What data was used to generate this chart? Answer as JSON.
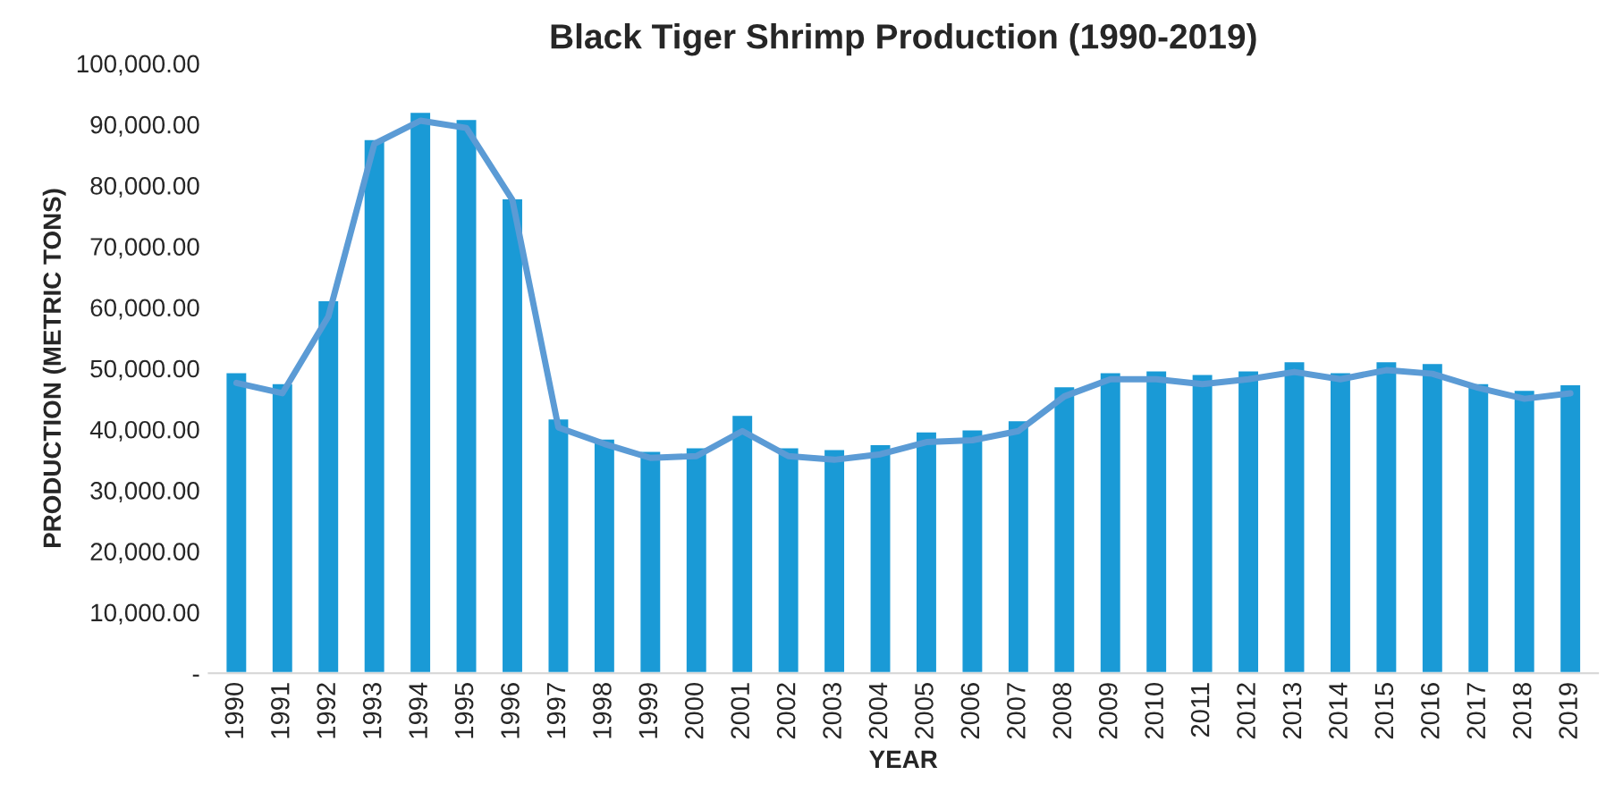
{
  "chart_data": {
    "type": "bar",
    "title": "Black Tiger Shrimp Production (1990-2019)",
    "xlabel": "YEAR",
    "ylabel": "PRODUCTION (METRIC TONS)",
    "categories": [
      "1990",
      "1991",
      "1992",
      "1993",
      "1994",
      "1995",
      "1996",
      "1997",
      "1998",
      "1999",
      "2000",
      "2001",
      "2002",
      "2003",
      "2004",
      "2005",
      "2006",
      "2007",
      "2008",
      "2009",
      "2010",
      "2011",
      "2012",
      "2013",
      "2014",
      "2015",
      "2016",
      "2017",
      "2018",
      "2019"
    ],
    "series": [
      {
        "color": "#1a9ad6",
        "values": [
          49400,
          47600,
          61200,
          87600,
          92100,
          90900,
          77900,
          41800,
          38500,
          36500,
          37100,
          42400,
          37100,
          36800,
          37600,
          39700,
          40000,
          41500,
          47100,
          49400,
          49700,
          49100,
          49700,
          51200,
          49400,
          51200,
          50900,
          47600,
          46500,
          47400
        ]
      },
      {
        "type": "line",
        "color": "#5b9bd5",
        "values": [
          47600,
          45900,
          58500,
          86800,
          90600,
          89400,
          77600,
          40300,
          37600,
          35300,
          35600,
          39700,
          35600,
          35000,
          35900,
          37900,
          38200,
          39700,
          45400,
          48200,
          48200,
          47400,
          48200,
          49400,
          48200,
          49700,
          49100,
          46800,
          45000,
          45900
        ]
      }
    ],
    "ylim": [
      0,
      100000
    ],
    "yticks": [
      {
        "value": 0,
        "label": "-"
      },
      {
        "value": 10000,
        "label": "10,000.00"
      },
      {
        "value": 20000,
        "label": "20,000.00"
      },
      {
        "value": 30000,
        "label": "30,000.00"
      },
      {
        "value": 40000,
        "label": "40,000.00"
      },
      {
        "value": 50000,
        "label": "50,000.00"
      },
      {
        "value": 60000,
        "label": "60,000.00"
      },
      {
        "value": 70000,
        "label": "70,000.00"
      },
      {
        "value": 80000,
        "label": "80,000.00"
      },
      {
        "value": 90000,
        "label": "90,000.00"
      },
      {
        "value": 100000,
        "label": "100,000.00"
      }
    ],
    "grid": false,
    "marker": "none",
    "line_style": "solid"
  }
}
